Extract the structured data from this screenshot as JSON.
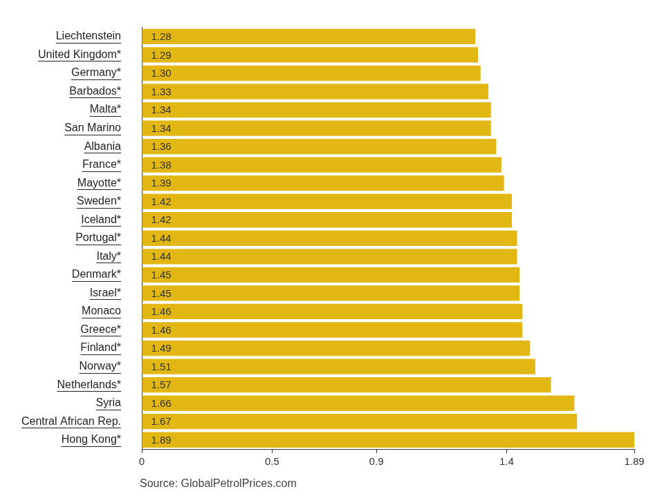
{
  "chart_data": {
    "type": "bar",
    "orientation": "horizontal",
    "categories": [
      "Liechtenstein",
      "United Kingdom*",
      "Germany*",
      "Barbados*",
      "Malta*",
      "San Marino",
      "Albania",
      "France*",
      "Mayotte*",
      "Sweden*",
      "Iceland*",
      "Portugal*",
      "Italy*",
      "Denmark*",
      "Israel*",
      "Monaco",
      "Greece*",
      "Finland*",
      "Norway*",
      "Netherlands*",
      "Syria",
      "Central African Rep.",
      "Hong Kong*"
    ],
    "values": [
      1.28,
      1.29,
      1.3,
      1.33,
      1.34,
      1.34,
      1.36,
      1.38,
      1.39,
      1.42,
      1.42,
      1.44,
      1.44,
      1.45,
      1.45,
      1.46,
      1.46,
      1.49,
      1.51,
      1.57,
      1.66,
      1.67,
      1.89
    ],
    "value_labels": [
      "1.28",
      "1.29",
      "1.30",
      "1.33",
      "1.34",
      "1.34",
      "1.36",
      "1.38",
      "1.39",
      "1.42",
      "1.42",
      "1.44",
      "1.44",
      "1.45",
      "1.45",
      "1.46",
      "1.46",
      "1.49",
      "1.51",
      "1.57",
      "1.66",
      "1.67",
      "1.89"
    ],
    "color": "#e2b714",
    "xlim": [
      0,
      1.89
    ],
    "xticks": [
      0,
      0.5,
      0.9,
      1.4,
      1.89
    ],
    "grid": false,
    "data_labels": true,
    "annotations": [
      "Source: GlobalPetrolPrices.com"
    ]
  }
}
